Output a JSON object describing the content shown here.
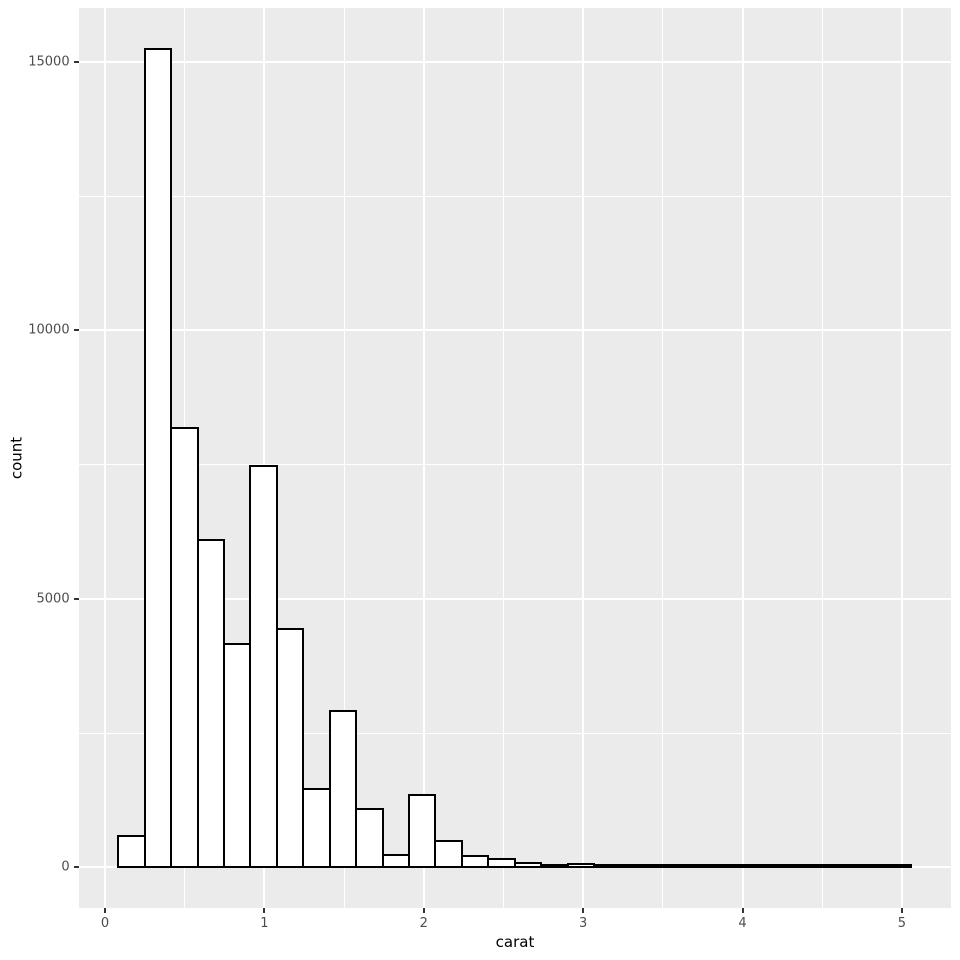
{
  "chart_data": {
    "type": "bar",
    "variant": "histogram",
    "title": "",
    "xlabel": "carat",
    "ylabel": "count",
    "bin_start": 0.083,
    "binwidth": 0.16586,
    "counts": [
      585,
      15240,
      8180,
      6100,
      4160,
      7480,
      4440,
      1450,
      2920,
      1090,
      230,
      1345,
      490,
      210,
      150,
      75,
      30,
      55,
      12,
      5,
      4,
      5,
      2,
      3,
      3,
      1,
      1,
      1,
      1,
      2
    ],
    "bin_centers": [
      0.17,
      0.33,
      0.5,
      0.66,
      0.83,
      1.0,
      1.16,
      1.33,
      1.49,
      1.66,
      1.82,
      1.99,
      2.16,
      2.32,
      2.49,
      2.65,
      2.82,
      2.99,
      3.15,
      3.32,
      3.48,
      3.65,
      3.81,
      3.98,
      4.14,
      4.31,
      4.47,
      4.64,
      4.8,
      4.97
    ],
    "x_ticks": [
      0,
      1,
      2,
      3,
      4,
      5
    ],
    "x_tick_labels": [
      "0",
      "1",
      "2",
      "3",
      "4",
      "5"
    ],
    "x_minor_ticks": [
      0.5,
      1.5,
      2.5,
      3.5,
      4.5
    ],
    "y_ticks": [
      0,
      5000,
      10000,
      15000
    ],
    "y_tick_labels": [
      "0",
      "5000",
      "10000",
      "15000"
    ],
    "y_minor_ticks": [
      2500,
      7500,
      12500
    ],
    "xlim": [
      -0.166,
      5.308
    ],
    "ylim": [
      -762,
      16002
    ],
    "grid": true,
    "legend_position": "none",
    "colors": {
      "panel_bg": "#EBEBEB",
      "outer_bg": "#FFFFFF",
      "gridline": "#FFFFFF",
      "bar_fill": "#FFFFFF",
      "bar_stroke": "#000000",
      "tick_label": "#4D4D4D",
      "tick_mark": "#333333",
      "axis_title": "#000000"
    }
  }
}
